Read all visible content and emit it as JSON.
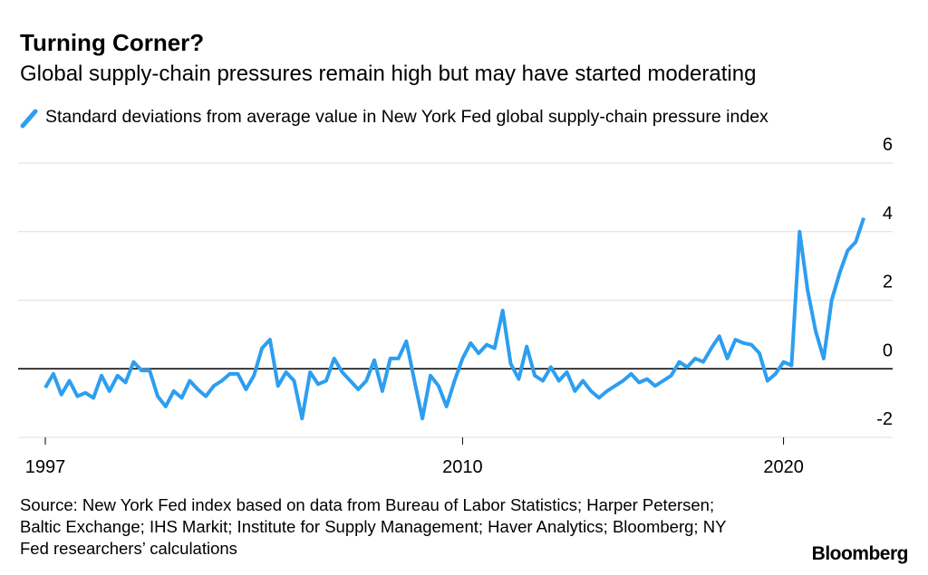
{
  "chart_data": {
    "type": "line",
    "title": "Turning Corner?",
    "subtitle": "Global supply-chain pressures remain high but may have started moderating",
    "source": "Source: New York Fed index based on data from Bureau of Labor Statistics; Harper Petersen; Baltic Exchange; IHS Markit; Institute for Supply Management; Haver Analytics; Bloomberg; NY Fed researchers’ calculations",
    "brand": "Bloomberg",
    "x": [
      1997,
      1997.25,
      1997.5,
      1997.75,
      1998,
      1998.25,
      1998.5,
      1998.75,
      1999,
      1999.25,
      1999.5,
      1999.75,
      2000,
      2000.25,
      2000.5,
      2000.75,
      2001,
      2001.25,
      2001.5,
      2001.75,
      2002,
      2002.25,
      2002.5,
      2002.75,
      2003,
      2003.25,
      2003.5,
      2003.75,
      2004,
      2004.25,
      2004.5,
      2004.75,
      2005,
      2005.25,
      2005.5,
      2005.75,
      2006,
      2006.25,
      2006.5,
      2006.75,
      2007,
      2007.25,
      2007.5,
      2007.75,
      2008,
      2008.25,
      2008.5,
      2008.75,
      2009,
      2009.25,
      2009.5,
      2009.75,
      2010,
      2010.25,
      2010.5,
      2010.75,
      2011,
      2011.25,
      2011.5,
      2011.75,
      2012,
      2012.25,
      2012.5,
      2012.75,
      2013,
      2013.25,
      2013.5,
      2013.75,
      2014,
      2014.25,
      2014.5,
      2014.75,
      2015,
      2015.25,
      2015.5,
      2015.75,
      2016,
      2016.25,
      2016.5,
      2016.75,
      2017,
      2017.25,
      2017.5,
      2017.75,
      2018,
      2018.25,
      2018.5,
      2018.75,
      2019,
      2019.25,
      2019.5,
      2019.75,
      2020,
      2020.25,
      2020.5,
      2020.75,
      2021,
      2021.25,
      2021.5,
      2021.75,
      2022,
      2022.25,
      2022.5
    ],
    "series": [
      {
        "name": "Standard deviations from average value in New York Fed global supply-chain pressure index",
        "color": "#2d9ef0",
        "values": [
          -0.55,
          -0.15,
          -0.75,
          -0.35,
          -0.8,
          -0.7,
          -0.85,
          -0.2,
          -0.65,
          -0.2,
          -0.4,
          0.2,
          -0.05,
          -0.05,
          -0.8,
          -1.1,
          -0.65,
          -0.85,
          -0.35,
          -0.6,
          -0.8,
          -0.5,
          -0.35,
          -0.15,
          -0.15,
          -0.6,
          -0.2,
          0.6,
          0.85,
          -0.5,
          -0.1,
          -0.35,
          -1.45,
          -0.1,
          -0.45,
          -0.35,
          0.3,
          -0.1,
          -0.35,
          -0.6,
          -0.35,
          0.25,
          -0.65,
          0.3,
          0.3,
          0.8,
          -0.35,
          -1.45,
          -0.2,
          -0.5,
          -1.1,
          -0.35,
          0.3,
          0.75,
          0.45,
          0.7,
          0.6,
          1.7,
          0.15,
          -0.3,
          0.65,
          -0.2,
          -0.35,
          0.05,
          -0.35,
          -0.1,
          -0.65,
          -0.35,
          -0.65,
          -0.85,
          -0.65,
          -0.5,
          -0.35,
          -0.15,
          -0.4,
          -0.3,
          -0.5,
          -0.35,
          -0.2,
          0.2,
          0.05,
          0.3,
          0.2,
          0.6,
          0.95,
          0.3,
          0.85,
          0.75,
          0.7,
          0.45,
          -0.35,
          -0.15,
          0.2,
          0.1,
          4.0,
          2.3,
          1.1,
          0.3,
          2.0,
          2.8,
          3.45,
          3.7,
          4.4
        ]
      }
    ],
    "xlim": [
      1997,
      2023.4
    ],
    "xticks": [
      1997,
      2010,
      2020
    ],
    "ylim": [
      -2,
      6
    ],
    "yticks": [
      -2,
      0,
      2,
      4,
      6
    ],
    "grid": true
  }
}
